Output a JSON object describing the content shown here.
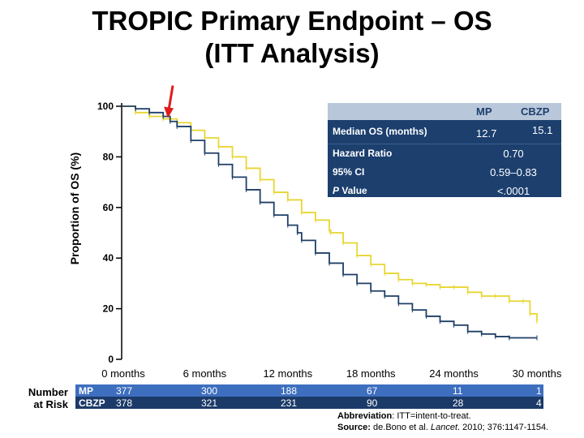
{
  "title_line1": "TROPIC Primary Endpoint – OS",
  "title_line2": "(ITT Analysis)",
  "stats_table": {
    "col_mp": "MP",
    "col_cbzp": "CBZP",
    "median_label": "Median OS (months)",
    "median_mp": "12.7",
    "median_cbzp": "15.1",
    "hr_label": "Hazard Ratio",
    "hr_value": "0.70",
    "ci_label": "95% CI",
    "ci_value": "0.59–0.83",
    "p_label_italic": "P",
    "p_label_rest": " Value",
    "p_value": "<.0001"
  },
  "risk_table": {
    "title": "Number at Risk",
    "rows": [
      {
        "arm": "MP",
        "values": [
          "377",
          "300",
          "188",
          "67",
          "11",
          "1"
        ]
      },
      {
        "arm": "CBZP",
        "values": [
          "378",
          "321",
          "231",
          "90",
          "28",
          "4"
        ]
      }
    ]
  },
  "footnote": {
    "abbrev_label": "Abbreviation",
    "abbrev_text": ": ITT=intent-to-treat.",
    "source_label": "Source:",
    "source_text_1": " de.Bono et al. ",
    "source_journal": "Lancet",
    "source_text_2": ". 2010; 376:1147-1154."
  },
  "chart_data": {
    "type": "line",
    "title": "TROPIC Primary Endpoint – OS (ITT Analysis)",
    "xlabel": "",
    "ylabel": "Proportion of OS (%)",
    "xlim": [
      0,
      30
    ],
    "ylim": [
      0,
      100
    ],
    "x_ticks": [
      0,
      6,
      12,
      18,
      24,
      30
    ],
    "x_tick_labels": [
      "0 months",
      "6 months",
      "12 months",
      "18 months",
      "24 months",
      "30 months"
    ],
    "y_ticks": [
      0,
      20,
      40,
      60,
      80,
      100
    ],
    "y_tick_labels": [
      "0",
      "20",
      "40",
      "60",
      "80",
      "100"
    ],
    "annotation": "arrow marking curve crossing near 3 months",
    "annotation_x": 3.4,
    "annotation_y": 96,
    "series": [
      {
        "name": "MP",
        "color": "#1f3f66",
        "x": [
          0,
          1,
          2,
          3,
          3.5,
          4,
          5,
          6,
          7,
          8,
          9,
          10,
          11,
          12,
          12.7,
          13,
          14,
          15,
          16,
          17,
          18,
          19,
          20,
          21,
          22,
          23,
          24,
          25,
          26,
          27,
          28,
          30
        ],
        "y": [
          100,
          99,
          97.5,
          96,
          94,
          92,
          86.5,
          81.5,
          77,
          72,
          67,
          62,
          57,
          53,
          50,
          47,
          42,
          38,
          33.5,
          30,
          27,
          25,
          22,
          19.5,
          17,
          15,
          13.5,
          11,
          10,
          9,
          8.5,
          8.5
        ]
      },
      {
        "name": "CBZP",
        "color": "#e8d631",
        "x": [
          0,
          1,
          2,
          3,
          4,
          5,
          6,
          7,
          8,
          9,
          10,
          11,
          12,
          13,
          14,
          15,
          15.1,
          16,
          17,
          18,
          19,
          20,
          21,
          22,
          23,
          24,
          25,
          26,
          27,
          28,
          29,
          29.5,
          30
        ],
        "y": [
          100,
          97.5,
          96,
          95,
          93.5,
          90.5,
          87.5,
          84,
          80,
          75.5,
          71,
          66,
          63,
          58,
          55,
          51,
          50,
          46,
          41,
          37.5,
          34,
          31.5,
          30,
          29.5,
          28.5,
          28.5,
          26.5,
          25,
          25,
          23,
          23,
          18,
          15
        ]
      }
    ]
  }
}
